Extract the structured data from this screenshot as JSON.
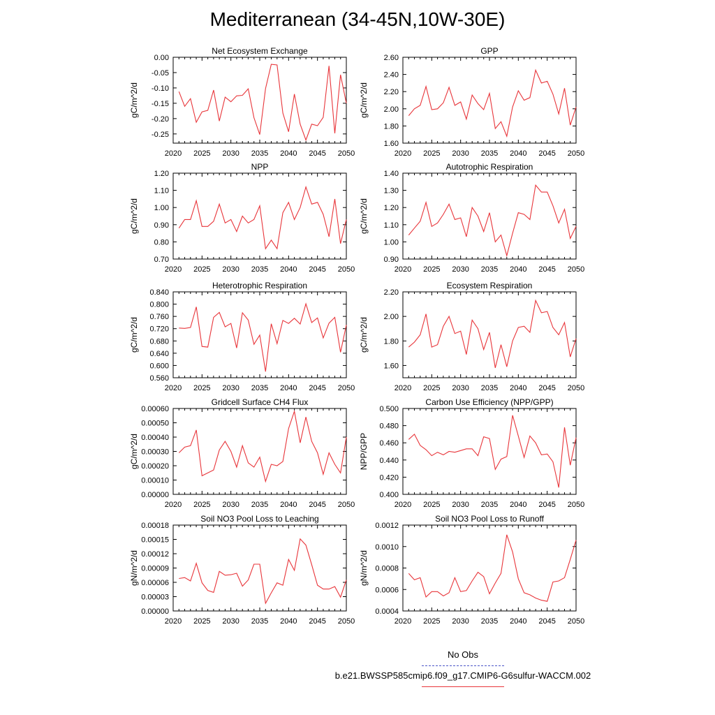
{
  "figure": {
    "title": "Mediterranean (34-45N,10W-30E)"
  },
  "legend": {
    "obs_label": "No Obs",
    "model_label": "b.e21.BWSSP585cmip6.f09_g17.CMIP6-G6sulfur-WACCM.002",
    "obs_color": "#4a54c8",
    "model_color": "#e8353a"
  },
  "chart_data": [
    {
      "type": "line",
      "title": "Net Ecosystem Exchange",
      "ylabel": "gC/m^2/d",
      "xlim": [
        2020,
        2050
      ],
      "ylim": [
        -0.28,
        0.0
      ],
      "xticks": [
        "2020",
        "2025",
        "2030",
        "2035",
        "2040",
        "2045",
        "2050"
      ],
      "yticks": [
        "0.00",
        "-0.05",
        "-0.10",
        "-0.15",
        "-0.20",
        "-0.25"
      ],
      "ytick_values": [
        0.0,
        -0.05,
        -0.1,
        -0.15,
        -0.2,
        -0.25
      ],
      "x": [
        2021,
        2022,
        2023,
        2024,
        2025,
        2026,
        2027,
        2028,
        2029,
        2030,
        2031,
        2032,
        2033,
        2034,
        2035,
        2036,
        2037,
        2038,
        2039,
        2040,
        2041,
        2042,
        2043,
        2044,
        2045,
        2046,
        2047,
        2048,
        2049,
        2050
      ],
      "series": [
        {
          "values": [
            -0.112,
            -0.16,
            -0.135,
            -0.212,
            -0.178,
            -0.173,
            -0.107,
            -0.208,
            -0.13,
            -0.145,
            -0.126,
            -0.124,
            -0.103,
            -0.197,
            -0.252,
            -0.102,
            -0.023,
            -0.025,
            -0.182,
            -0.243,
            -0.12,
            -0.218,
            -0.27,
            -0.218,
            -0.223,
            -0.196,
            -0.028,
            -0.248,
            -0.057,
            -0.15
          ]
        }
      ]
    },
    {
      "type": "line",
      "title": "GPP",
      "ylabel": "gC/m^2/d",
      "xlim": [
        2020,
        2050
      ],
      "ylim": [
        1.6,
        2.6
      ],
      "xticks": [
        "2020",
        "2025",
        "2030",
        "2035",
        "2040",
        "2045",
        "2050"
      ],
      "yticks": [
        "1.60",
        "1.80",
        "2.00",
        "2.20",
        "2.40",
        "2.60"
      ],
      "ytick_values": [
        1.6,
        1.8,
        2.0,
        2.2,
        2.4,
        2.6
      ],
      "x": [
        2021,
        2022,
        2023,
        2024,
        2025,
        2026,
        2027,
        2028,
        2029,
        2030,
        2031,
        2032,
        2033,
        2034,
        2035,
        2036,
        2037,
        2038,
        2039,
        2040,
        2041,
        2042,
        2043,
        2044,
        2045,
        2046,
        2047,
        2048,
        2049,
        2050
      ],
      "series": [
        {
          "values": [
            1.92,
            2.0,
            2.04,
            2.26,
            1.99,
            2.0,
            2.07,
            2.25,
            2.04,
            2.08,
            1.88,
            2.16,
            2.06,
            1.99,
            2.18,
            1.77,
            1.85,
            1.68,
            2.02,
            2.21,
            2.1,
            2.13,
            2.45,
            2.3,
            2.32,
            2.17,
            1.94,
            2.24,
            1.81,
            2.02
          ]
        }
      ]
    },
    {
      "type": "line",
      "title": "NPP",
      "ylabel": "gC/m^2/d",
      "xlim": [
        2020,
        2050
      ],
      "ylim": [
        0.7,
        1.2
      ],
      "xticks": [
        "2020",
        "2025",
        "2030",
        "2035",
        "2040",
        "2045",
        "2050"
      ],
      "yticks": [
        "0.70",
        "0.80",
        "0.90",
        "1.00",
        "1.10",
        "1.20"
      ],
      "ytick_values": [
        0.7,
        0.8,
        0.9,
        1.0,
        1.1,
        1.2
      ],
      "x": [
        2021,
        2022,
        2023,
        2024,
        2025,
        2026,
        2027,
        2028,
        2029,
        2030,
        2031,
        2032,
        2033,
        2034,
        2035,
        2036,
        2037,
        2038,
        2039,
        2040,
        2041,
        2042,
        2043,
        2044,
        2045,
        2046,
        2047,
        2048,
        2049,
        2050
      ],
      "series": [
        {
          "values": [
            0.88,
            0.93,
            0.93,
            1.04,
            0.89,
            0.89,
            0.92,
            1.02,
            0.91,
            0.93,
            0.86,
            0.95,
            0.91,
            0.93,
            1.01,
            0.76,
            0.81,
            0.76,
            0.97,
            1.03,
            0.93,
            1.0,
            1.12,
            1.02,
            1.03,
            0.96,
            0.83,
            1.05,
            0.79,
            0.93
          ]
        }
      ]
    },
    {
      "type": "line",
      "title": "Autotrophic Respiration",
      "ylabel": "gC/m^2/d",
      "xlim": [
        2020,
        2050
      ],
      "ylim": [
        0.9,
        1.4
      ],
      "xticks": [
        "2020",
        "2025",
        "2030",
        "2035",
        "2040",
        "2045",
        "2050"
      ],
      "yticks": [
        "0.90",
        "1.00",
        "1.10",
        "1.20",
        "1.30",
        "1.40"
      ],
      "ytick_values": [
        0.9,
        1.0,
        1.1,
        1.2,
        1.3,
        1.4
      ],
      "x": [
        2021,
        2022,
        2023,
        2024,
        2025,
        2026,
        2027,
        2028,
        2029,
        2030,
        2031,
        2032,
        2033,
        2034,
        2035,
        2036,
        2037,
        2038,
        2039,
        2040,
        2041,
        2042,
        2043,
        2044,
        2045,
        2046,
        2047,
        2048,
        2049,
        2050
      ],
      "series": [
        {
          "values": [
            1.04,
            1.08,
            1.12,
            1.23,
            1.09,
            1.11,
            1.16,
            1.22,
            1.13,
            1.14,
            1.03,
            1.2,
            1.15,
            1.06,
            1.17,
            1.0,
            1.04,
            0.92,
            1.05,
            1.17,
            1.16,
            1.13,
            1.33,
            1.29,
            1.29,
            1.21,
            1.11,
            1.19,
            1.02,
            1.09
          ]
        }
      ]
    },
    {
      "type": "line",
      "title": "Heterotrophic Respiration",
      "ylabel": "gC/m^2/d",
      "xlim": [
        2020,
        2050
      ],
      "ylim": [
        0.56,
        0.84
      ],
      "xticks": [
        "2020",
        "2025",
        "2030",
        "2035",
        "2040",
        "2045",
        "2050"
      ],
      "yticks": [
        "0.560",
        "0.600",
        "0.640",
        "0.680",
        "0.720",
        "0.760",
        "0.800",
        "0.840"
      ],
      "ytick_values": [
        0.56,
        0.6,
        0.64,
        0.68,
        0.72,
        0.76,
        0.8,
        0.84
      ],
      "x": [
        2021,
        2022,
        2023,
        2024,
        2025,
        2026,
        2027,
        2028,
        2029,
        2030,
        2031,
        2032,
        2033,
        2034,
        2035,
        2036,
        2037,
        2038,
        2039,
        2040,
        2041,
        2042,
        2043,
        2044,
        2045,
        2046,
        2047,
        2048,
        2049,
        2050
      ],
      "series": [
        {
          "values": [
            0.722,
            0.721,
            0.724,
            0.791,
            0.662,
            0.66,
            0.757,
            0.773,
            0.726,
            0.737,
            0.657,
            0.772,
            0.748,
            0.669,
            0.699,
            0.58,
            0.736,
            0.671,
            0.747,
            0.737,
            0.754,
            0.735,
            0.801,
            0.74,
            0.755,
            0.69,
            0.738,
            0.757,
            0.643,
            0.732
          ]
        }
      ]
    },
    {
      "type": "line",
      "title": "Ecosystem Respiration",
      "ylabel": "gC/m^2/d",
      "xlim": [
        2020,
        2050
      ],
      "ylim": [
        1.5,
        2.2
      ],
      "xticks": [
        "2020",
        "2025",
        "2030",
        "2035",
        "2040",
        "2045",
        "2050"
      ],
      "yticks": [
        "1.60",
        "1.80",
        "2.00",
        "2.20"
      ],
      "ytick_values": [
        1.6,
        1.8,
        2.0,
        2.2
      ],
      "x": [
        2021,
        2022,
        2023,
        2024,
        2025,
        2026,
        2027,
        2028,
        2029,
        2030,
        2031,
        2032,
        2033,
        2034,
        2035,
        2036,
        2037,
        2038,
        2039,
        2040,
        2041,
        2042,
        2043,
        2044,
        2045,
        2046,
        2047,
        2048,
        2049,
        2050
      ],
      "series": [
        {
          "values": [
            1.75,
            1.79,
            1.85,
            2.02,
            1.75,
            1.77,
            1.92,
            2.0,
            1.86,
            1.88,
            1.69,
            1.97,
            1.9,
            1.73,
            1.87,
            1.58,
            1.77,
            1.59,
            1.8,
            1.91,
            1.92,
            1.87,
            2.13,
            2.03,
            2.04,
            1.91,
            1.85,
            1.95,
            1.67,
            1.82
          ]
        }
      ]
    },
    {
      "type": "line",
      "title": "Gridcell Surface CH4 Flux",
      "ylabel": "gC/m^2/d",
      "xlim": [
        2020,
        2050
      ],
      "ylim": [
        0.0,
        0.0006
      ],
      "xticks": [
        "2020",
        "2025",
        "2030",
        "2035",
        "2040",
        "2045",
        "2050"
      ],
      "yticks": [
        "0.00000",
        "0.00010",
        "0.00020",
        "0.00030",
        "0.00040",
        "0.00050",
        "0.00060"
      ],
      "ytick_values": [
        0.0,
        0.0001,
        0.0002,
        0.0003,
        0.0004,
        0.0005,
        0.0006
      ],
      "x": [
        2021,
        2022,
        2023,
        2024,
        2025,
        2026,
        2027,
        2028,
        2029,
        2030,
        2031,
        2032,
        2033,
        2034,
        2035,
        2036,
        2037,
        2038,
        2039,
        2040,
        2041,
        2042,
        2043,
        2044,
        2045,
        2046,
        2047,
        2048,
        2049,
        2050
      ],
      "series": [
        {
          "values": [
            0.00029,
            0.00033,
            0.00034,
            0.00045,
            0.00013,
            0.00015,
            0.00017,
            0.00031,
            0.00037,
            0.0003,
            0.00019,
            0.00034,
            0.00022,
            0.00019,
            0.00026,
            9e-05,
            0.00021,
            0.0002,
            0.00023,
            0.00046,
            0.00058,
            0.00036,
            0.00054,
            0.00037,
            0.00029,
            0.00014,
            0.00029,
            0.00021,
            0.00015,
            0.0004
          ]
        }
      ]
    },
    {
      "type": "line",
      "title": "Carbon Use Efficiency (NPP/GPP)",
      "ylabel": "NPP/GPP",
      "xlim": [
        2020,
        2050
      ],
      "ylim": [
        0.4,
        0.5
      ],
      "xticks": [
        "2020",
        "2025",
        "2030",
        "2035",
        "2040",
        "2045",
        "2050"
      ],
      "yticks": [
        "0.400",
        "0.420",
        "0.440",
        "0.460",
        "0.480",
        "0.500"
      ],
      "ytick_values": [
        0.4,
        0.42,
        0.44,
        0.46,
        0.48,
        0.5
      ],
      "x": [
        2021,
        2022,
        2023,
        2024,
        2025,
        2026,
        2027,
        2028,
        2029,
        2030,
        2031,
        2032,
        2033,
        2034,
        2035,
        2036,
        2037,
        2038,
        2039,
        2040,
        2041,
        2042,
        2043,
        2044,
        2045,
        2046,
        2047,
        2048,
        2049,
        2050
      ],
      "series": [
        {
          "values": [
            0.464,
            0.47,
            0.457,
            0.452,
            0.445,
            0.449,
            0.446,
            0.45,
            0.449,
            0.451,
            0.453,
            0.453,
            0.445,
            0.467,
            0.465,
            0.429,
            0.441,
            0.444,
            0.492,
            0.468,
            0.443,
            0.468,
            0.46,
            0.446,
            0.447,
            0.438,
            0.408,
            0.478,
            0.434,
            0.466
          ]
        }
      ]
    },
    {
      "type": "line",
      "title": "Soil NO3 Pool Loss to Leaching",
      "ylabel": "gN/m^2/d",
      "xlim": [
        2020,
        2050
      ],
      "ylim": [
        0.0,
        0.00018
      ],
      "xticks": [
        "2020",
        "2025",
        "2030",
        "2035",
        "2040",
        "2045",
        "2050"
      ],
      "yticks": [
        "0.00000",
        "0.00003",
        "0.00006",
        "0.00009",
        "0.00012",
        "0.00015",
        "0.00018"
      ],
      "ytick_values": [
        0.0,
        3e-05,
        6e-05,
        9e-05,
        0.00012,
        0.00015,
        0.00018
      ],
      "x": [
        2021,
        2022,
        2023,
        2024,
        2025,
        2026,
        2027,
        2028,
        2029,
        2030,
        2031,
        2032,
        2033,
        2034,
        2035,
        2036,
        2037,
        2038,
        2039,
        2040,
        2041,
        2042,
        2043,
        2044,
        2045,
        2046,
        2047,
        2048,
        2049,
        2050
      ],
      "series": [
        {
          "values": [
            6.8e-05,
            7e-05,
            6.3e-05,
            0.0001,
            5.9e-05,
            4.3e-05,
            3.9e-05,
            8.3e-05,
            7.5e-05,
            7.6e-05,
            7.9e-05,
            5.2e-05,
            6.5e-05,
            9.8e-05,
            9.8e-05,
            1.6e-05,
            3.8e-05,
            5.9e-05,
            5.4e-05,
            0.000108,
            8.5e-05,
            0.000151,
            0.000138,
            9.7e-05,
            5.4e-05,
            4.6e-05,
            4.6e-05,
            5.1e-05,
            2.9e-05,
            6.5e-05
          ]
        }
      ]
    },
    {
      "type": "line",
      "title": "Soil NO3 Pool Loss to Runoff",
      "ylabel": "gN/m^2/d",
      "xlim": [
        2020,
        2050
      ],
      "ylim": [
        0.0004,
        0.0012
      ],
      "xticks": [
        "2020",
        "2025",
        "2030",
        "2035",
        "2040",
        "2045",
        "2050"
      ],
      "yticks": [
        "0.0004",
        "0.0006",
        "0.0008",
        "0.0010",
        "0.0012"
      ],
      "ytick_values": [
        0.0004,
        0.0006,
        0.0008,
        0.001,
        0.0012
      ],
      "x": [
        2021,
        2022,
        2023,
        2024,
        2025,
        2026,
        2027,
        2028,
        2029,
        2030,
        2031,
        2032,
        2033,
        2034,
        2035,
        2036,
        2037,
        2038,
        2039,
        2040,
        2041,
        2042,
        2043,
        2044,
        2045,
        2046,
        2047,
        2048,
        2049,
        2050
      ],
      "series": [
        {
          "values": [
            0.00075,
            0.00069,
            0.00071,
            0.00053,
            0.00058,
            0.00058,
            0.00054,
            0.00057,
            0.00071,
            0.00058,
            0.00059,
            0.00068,
            0.00076,
            0.00072,
            0.00056,
            0.00066,
            0.00075,
            0.00111,
            0.00095,
            0.0007,
            0.00057,
            0.00055,
            0.00052,
            0.0005,
            0.00049,
            0.00067,
            0.00068,
            0.00071,
            0.00088,
            0.00106
          ]
        }
      ]
    }
  ]
}
